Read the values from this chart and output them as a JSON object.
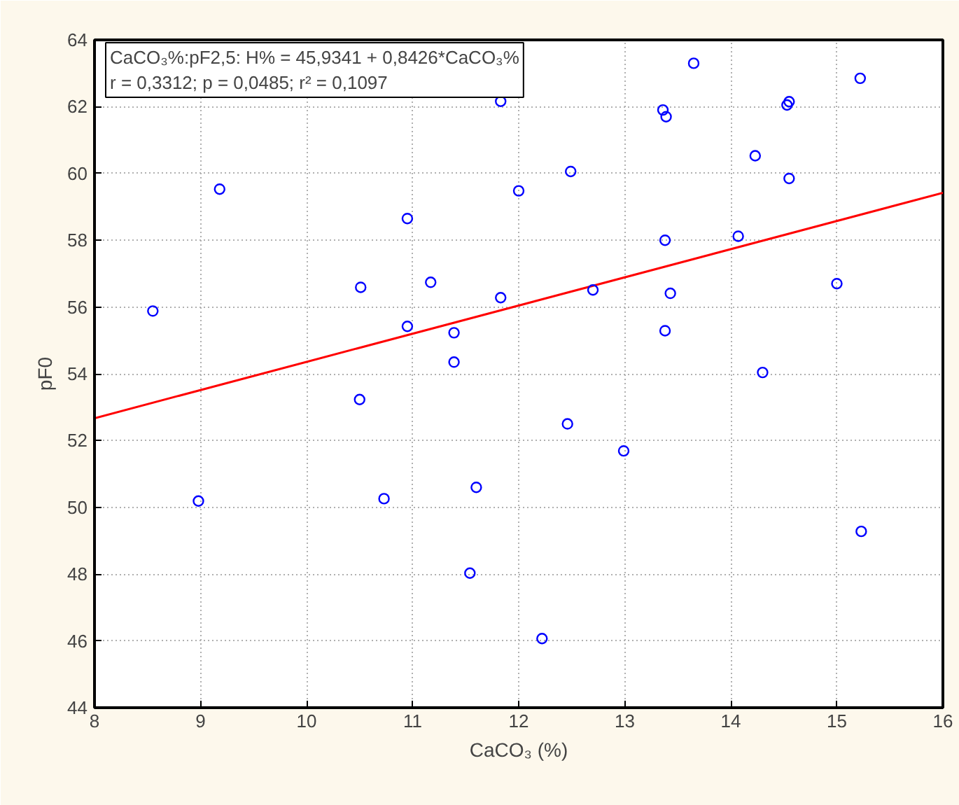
{
  "chart_data": {
    "type": "scatter",
    "xlabel": "CaCO₃ (%)",
    "ylabel": "pF0",
    "annotations": [
      "CaCO₃%:pF2,5: H% = 45,9341 + 0,8426*CaCO₃%\nr = 0,3312; p = 0,0485; r² = 0,1097"
    ],
    "xlim": [
      8,
      16
    ],
    "ylim": [
      44,
      64
    ],
    "xticks": [
      8,
      9,
      10,
      11,
      12,
      13,
      14,
      15,
      16
    ],
    "yticks": [
      44,
      46,
      48,
      50,
      52,
      54,
      56,
      58,
      60,
      62,
      64
    ],
    "grid": true,
    "marker": "circle",
    "series": [
      {
        "color": "#0000ff",
        "x": [
          8.55,
          9.18,
          11.83,
          12.0,
          10.95,
          10.51,
          11.17,
          11.83,
          10.95,
          11.39,
          11.39,
          13.65,
          15.22,
          14.53,
          14.55,
          13.36,
          13.39,
          14.23,
          12.49,
          14.55,
          13.38,
          14.07,
          12.7,
          13.43,
          15.0,
          13.38,
          10.5,
          8.98,
          10.73,
          11.6,
          11.54,
          14.3,
          12.46,
          12.99,
          15.23,
          12.22
        ],
        "values": [
          55.88,
          59.53,
          62.16,
          59.48,
          58.65,
          56.59,
          56.74,
          56.28,
          55.42,
          55.23,
          54.35,
          63.3,
          62.85,
          62.05,
          62.15,
          61.9,
          61.7,
          60.53,
          60.06,
          59.85,
          58.0,
          58.12,
          56.51,
          56.41,
          56.7,
          55.29,
          53.23,
          50.19,
          50.26,
          50.6,
          48.03,
          54.04,
          52.5,
          51.69,
          49.28,
          46.07
        ]
      },
      {
        "type": "line",
        "color": "#ff0000",
        "marker": "none",
        "x": [
          8,
          16
        ],
        "values": [
          52.67,
          59.42
        ]
      }
    ]
  }
}
